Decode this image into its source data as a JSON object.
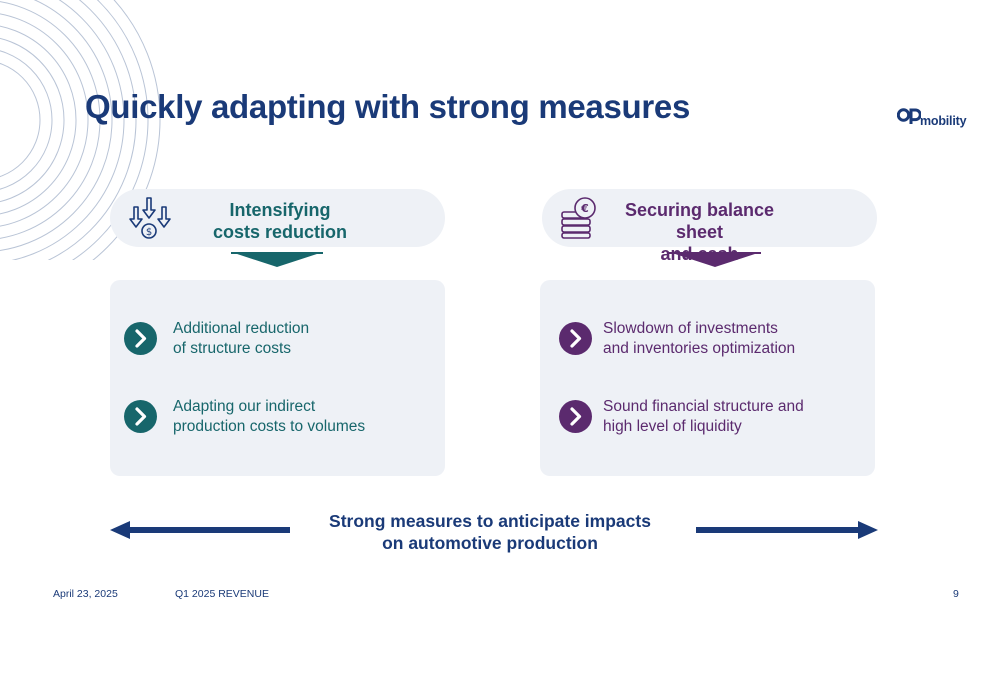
{
  "title": "Quickly adapting with strong measures",
  "logo": {
    "text": "mobility"
  },
  "left": {
    "heading": "Intensifying costs reduction",
    "heading_line1": "Intensifying",
    "heading_line2": "costs reduction",
    "icon": "cost-reduction-icon",
    "color": "#17666b",
    "items": [
      {
        "line1": "Additional reduction",
        "line2": "of structure costs"
      },
      {
        "line1": "Adapting our indirect",
        "line2": "production costs to volumes"
      }
    ]
  },
  "right": {
    "heading_line1": "Securing balance sheet",
    "heading_line2": "and cash",
    "icon": "euro-coins-icon",
    "color": "#5b2a6e",
    "items": [
      {
        "line1": "Slowdown of investments",
        "line2": "and inventories optimization"
      },
      {
        "line1": "Sound financial structure and",
        "line2": "high level of liquidity"
      }
    ]
  },
  "bottom": {
    "line1": "Strong measures to anticipate impacts",
    "line2": "on automotive production"
  },
  "footer": {
    "date": "April 23, 2025",
    "title": "Q1 2025 REVENUE",
    "page": "9"
  },
  "colors": {
    "navy": "#1a3a78",
    "teal": "#17666b",
    "purple": "#5b2a6e",
    "panel": "#eef1f6"
  }
}
